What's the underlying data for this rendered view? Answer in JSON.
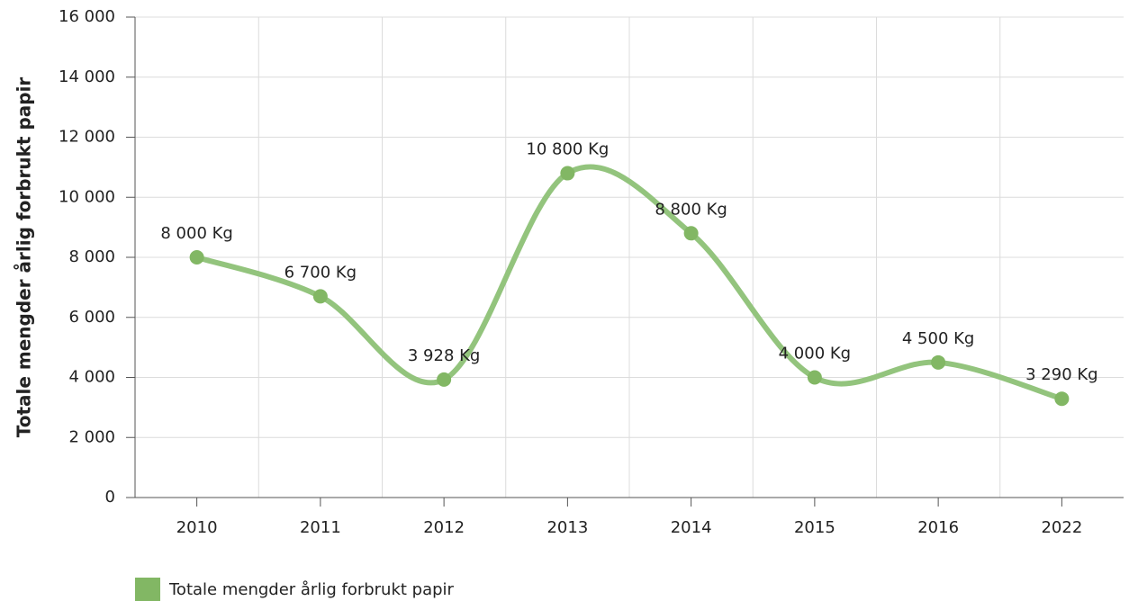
{
  "chart_data": {
    "type": "line",
    "ylabel": "Totale mengder årlig forbrukt papir",
    "categories": [
      "2010",
      "2011",
      "2012",
      "2013",
      "2014",
      "2015",
      "2016",
      "2022"
    ],
    "series": [
      {
        "name": "Totale mengder årlig forbrukt papir",
        "color": "#93c47d",
        "marker_color": "#82b764",
        "values": [
          8000,
          6700,
          3928,
          10800,
          8800,
          4000,
          4500,
          3290
        ],
        "value_labels": [
          "8 000 Kg",
          "6 700 Kg",
          "3 928 Kg",
          "10 800 Kg",
          "8 800 Kg",
          "4 000 Kg",
          "4 500 Kg",
          "3 290 Kg"
        ]
      }
    ],
    "ylim": [
      0,
      16000
    ],
    "yticks": [
      0,
      {
        "value": 2000,
        "label": "2 000"
      },
      {
        "value": 4000,
        "label": "4 000"
      },
      {
        "value": 6000,
        "label": "6 000"
      },
      {
        "value": 8000,
        "label": "8 000"
      },
      {
        "value": 10000,
        "label": "10 000"
      },
      {
        "value": 12000,
        "label": "12 000"
      },
      {
        "value": 14000,
        "label": "14 000"
      },
      {
        "value": 16000,
        "label": "16 000"
      }
    ],
    "grid": true,
    "legend": "bottom-left"
  }
}
